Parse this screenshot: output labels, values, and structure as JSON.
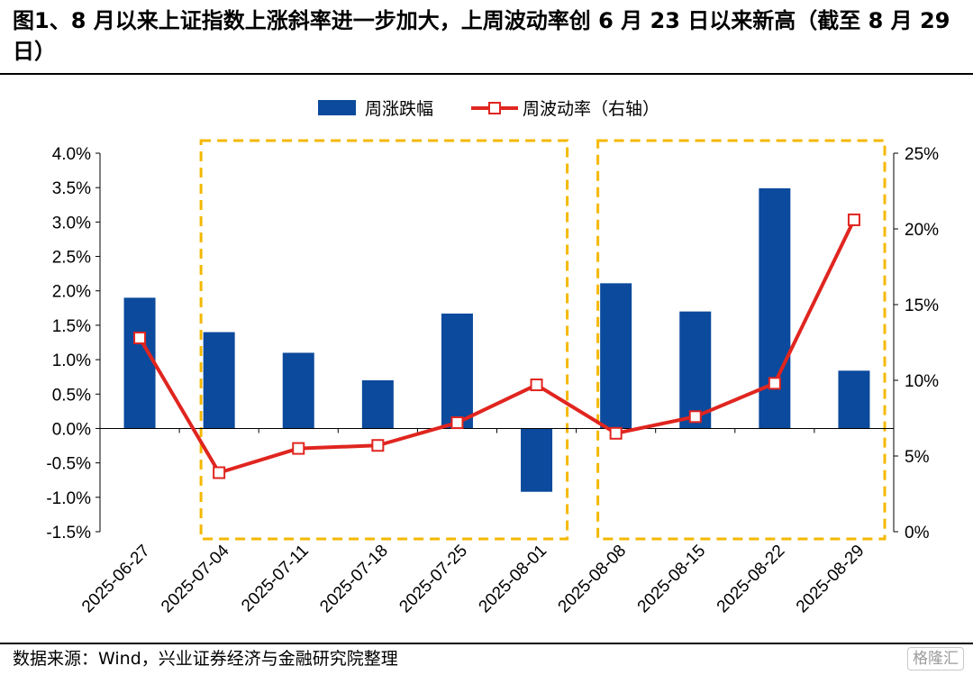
{
  "figure": {
    "title": "图1、8 月以来上证指数上涨斜率进一步加大，上周波动率创 6 月 23 日以来新高（截至 8 月 29 日）",
    "source": "数据来源：Wind，兴业证券经济与金融研究院整理",
    "watermark": "格隆汇"
  },
  "chart_data": {
    "type": "bar",
    "categories": [
      "2025-06-27",
      "2025-07-04",
      "2025-07-11",
      "2025-07-18",
      "2025-07-25",
      "2025-08-01",
      "2025-08-08",
      "2025-08-15",
      "2025-08-22",
      "2025-08-29"
    ],
    "series": [
      {
        "name": "周涨跌幅",
        "type": "bar",
        "axis": "left",
        "color": "#0b4a9c",
        "values": [
          1.9,
          1.4,
          1.1,
          0.7,
          1.67,
          -0.92,
          2.11,
          1.7,
          3.49,
          0.84
        ]
      },
      {
        "name": "周波动率（右轴）",
        "type": "line",
        "axis": "right",
        "color": "#e0251f",
        "values": [
          12.8,
          3.9,
          5.5,
          5.7,
          7.2,
          9.7,
          6.5,
          7.6,
          9.8,
          20.6
        ]
      }
    ],
    "y_left": {
      "ylim": [
        -1.5,
        4.0
      ],
      "ticks": [
        4.0,
        3.5,
        3.0,
        2.5,
        2.0,
        1.5,
        1.0,
        0.5,
        0.0,
        -0.5,
        -1.0,
        -1.5
      ],
      "tick_labels": [
        "4.0%",
        "3.5%",
        "3.0%",
        "2.5%",
        "2.0%",
        "1.5%",
        "1.0%",
        "0.5%",
        "0.0%",
        "-0.5%",
        "-1.0%",
        "-1.5%"
      ]
    },
    "y_right": {
      "ylim": [
        0,
        25
      ],
      "ticks": [
        25,
        20,
        15,
        10,
        5,
        0
      ],
      "tick_labels": [
        "25%",
        "20%",
        "15%",
        "10%",
        "5%",
        "0%"
      ]
    },
    "highlight_boxes": [
      {
        "from": "2025-07-04",
        "to": "2025-08-01",
        "color": "#f5b800"
      },
      {
        "from": "2025-08-08",
        "to": "2025-08-29",
        "color": "#f5b800"
      }
    ],
    "grid": false,
    "legend": "top-center"
  }
}
